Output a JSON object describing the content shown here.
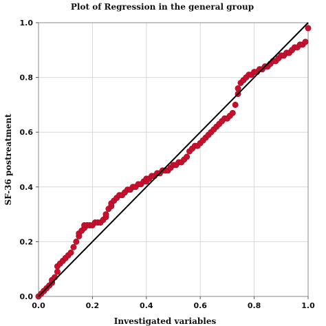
{
  "chart_data": {
    "type": "scatter",
    "title": "Plot of Regression in the general group",
    "xlabel": "Investigated variables",
    "ylabel": "SF-36 postreatment",
    "xlim": [
      0,
      1
    ],
    "ylim": [
      0,
      1
    ],
    "x_ticks": [
      "0.0",
      "0.2",
      "0.4",
      "0.6",
      "0.8",
      "1.0"
    ],
    "y_ticks": [
      "0.0",
      "0.2",
      "0.4",
      "0.6",
      "0.8",
      "1.0"
    ],
    "grid": true,
    "reference_line": {
      "x": [
        0,
        1
      ],
      "y": [
        0,
        1
      ]
    },
    "colors": {
      "points": "#c8102e",
      "points_edge": "#9b0b21",
      "reference_line": "#000000",
      "grid": "#d8d8d8",
      "frame": "#888888"
    },
    "series": [
      {
        "x": [
          0.0,
          0.01,
          0.02,
          0.02,
          0.03,
          0.04,
          0.05,
          0.05,
          0.06,
          0.07,
          0.07,
          0.08,
          0.09,
          0.1,
          0.1,
          0.11,
          0.12,
          0.13,
          0.14,
          0.15,
          0.15,
          0.16,
          0.17,
          0.17,
          0.18,
          0.19,
          0.2,
          0.21,
          0.22,
          0.23,
          0.24,
          0.25,
          0.25,
          0.26,
          0.27,
          0.27,
          0.28,
          0.29,
          0.3,
          0.31,
          0.32,
          0.33,
          0.34,
          0.35,
          0.36,
          0.37,
          0.38,
          0.39,
          0.4,
          0.4,
          0.41,
          0.42,
          0.43,
          0.44,
          0.45,
          0.46,
          0.47,
          0.48,
          0.49,
          0.5,
          0.51,
          0.52,
          0.53,
          0.54,
          0.55,
          0.56,
          0.57,
          0.58,
          0.59,
          0.6,
          0.61,
          0.62,
          0.63,
          0.64,
          0.65,
          0.66,
          0.67,
          0.68,
          0.69,
          0.7,
          0.71,
          0.72,
          0.73,
          0.74,
          0.74,
          0.75,
          0.76,
          0.77,
          0.78,
          0.79,
          0.8,
          0.81,
          0.82,
          0.83,
          0.84,
          0.85,
          0.86,
          0.87,
          0.88,
          0.89,
          0.9,
          0.91,
          0.92,
          0.93,
          0.94,
          0.95,
          0.96,
          0.97,
          0.98,
          0.99,
          1.0
        ],
        "y": [
          0.0,
          0.01,
          0.02,
          0.02,
          0.03,
          0.04,
          0.05,
          0.06,
          0.07,
          0.09,
          0.11,
          0.12,
          0.13,
          0.14,
          0.14,
          0.15,
          0.16,
          0.18,
          0.2,
          0.22,
          0.23,
          0.24,
          0.25,
          0.26,
          0.26,
          0.26,
          0.26,
          0.27,
          0.27,
          0.27,
          0.28,
          0.29,
          0.3,
          0.32,
          0.33,
          0.34,
          0.35,
          0.36,
          0.37,
          0.37,
          0.38,
          0.39,
          0.39,
          0.4,
          0.4,
          0.41,
          0.41,
          0.42,
          0.42,
          0.43,
          0.43,
          0.44,
          0.44,
          0.45,
          0.45,
          0.46,
          0.46,
          0.46,
          0.47,
          0.48,
          0.48,
          0.49,
          0.49,
          0.5,
          0.51,
          0.53,
          0.54,
          0.55,
          0.55,
          0.56,
          0.57,
          0.58,
          0.59,
          0.6,
          0.61,
          0.62,
          0.63,
          0.64,
          0.65,
          0.65,
          0.66,
          0.67,
          0.7,
          0.74,
          0.76,
          0.78,
          0.79,
          0.8,
          0.81,
          0.81,
          0.82,
          0.82,
          0.83,
          0.83,
          0.84,
          0.84,
          0.85,
          0.86,
          0.86,
          0.87,
          0.88,
          0.88,
          0.89,
          0.89,
          0.9,
          0.91,
          0.91,
          0.92,
          0.92,
          0.93,
          0.98
        ]
      }
    ]
  }
}
